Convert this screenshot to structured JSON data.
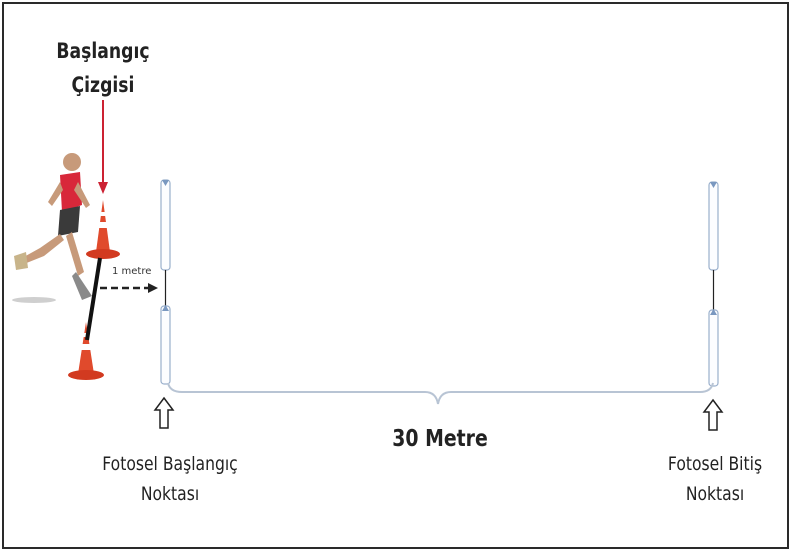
{
  "labels": {
    "start_line": [
      "Başlangıç",
      "Çizgisi"
    ],
    "photocell_start": [
      "Fotosel Başlangıç",
      "Noktası"
    ],
    "photocell_end": [
      "Fotosel Bitiş",
      "Noktası"
    ],
    "distance": "30 Metre",
    "one_metre": "1 metre"
  },
  "colors": {
    "arrow_red": "#cc2233",
    "cone_red": "#e04a2c",
    "frame": "#2a2a2a",
    "pole": "#9ab0cc"
  }
}
